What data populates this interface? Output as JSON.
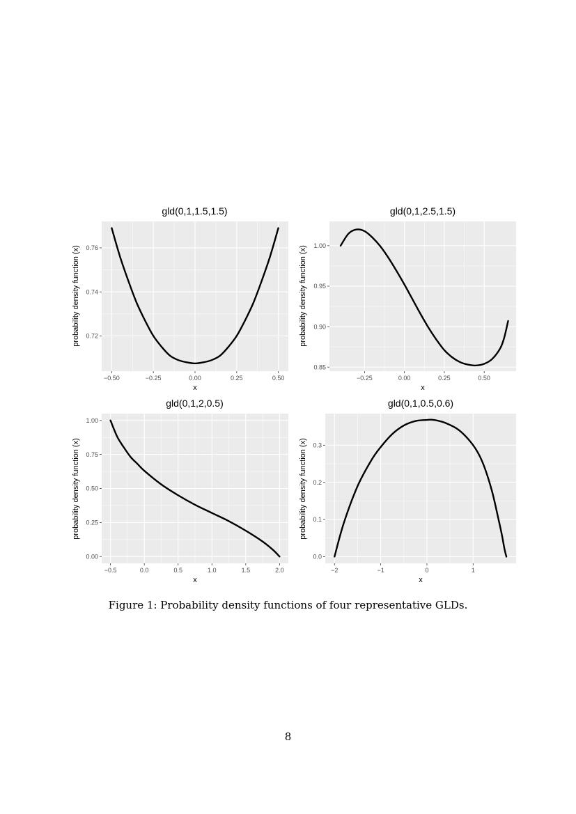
{
  "caption": "Figure 1: Probability density functions of four representative GLDs.",
  "page_number": "8",
  "style": {
    "panel_background": "#ebebeb",
    "grid_color": "#ffffff",
    "line_color": "#000000",
    "tick_label_color": "#4d4d4d"
  },
  "chart_data": [
    {
      "type": "line",
      "title": "gld(0,1,1.5,1.5)",
      "xlabel": "x",
      "ylabel": "probability density function (x)",
      "xlim": [
        -0.56,
        0.56
      ],
      "ylim": [
        0.704,
        0.772
      ],
      "xticks": [
        -0.5,
        -0.25,
        0.0,
        0.25,
        0.5
      ],
      "xtick_labels": [
        "−0.50",
        "−0.25",
        "0.00",
        "0.25",
        "0.50"
      ],
      "yticks": [
        0.72,
        0.74,
        0.76
      ],
      "ytick_labels": [
        "0.72",
        "0.74",
        "0.76"
      ],
      "grid": true,
      "series": [
        {
          "x": [
            -0.5,
            -0.45,
            -0.4,
            -0.35,
            -0.3,
            -0.25,
            -0.2,
            -0.15,
            -0.1,
            -0.05,
            0.0,
            0.05,
            0.1,
            0.15,
            0.2,
            0.25,
            0.3,
            0.35,
            0.4,
            0.45,
            0.5
          ],
          "y": [
            0.769,
            0.756,
            0.745,
            0.735,
            0.727,
            0.72,
            0.715,
            0.711,
            0.709,
            0.708,
            0.7075,
            0.708,
            0.709,
            0.711,
            0.715,
            0.72,
            0.727,
            0.735,
            0.745,
            0.756,
            0.769
          ]
        }
      ]
    },
    {
      "type": "line",
      "title": "gld(0,1,2.5,1.5)",
      "xlabel": "x",
      "ylabel": "probability density function (x)",
      "xlim": [
        -0.47,
        0.7
      ],
      "ylim": [
        0.845,
        1.03
      ],
      "xticks": [
        -0.25,
        0.0,
        0.25,
        0.5
      ],
      "xtick_labels": [
        "−0.25",
        "0.00",
        "0.25",
        "0.50"
      ],
      "yticks": [
        0.85,
        0.9,
        0.95,
        1.0
      ],
      "ytick_labels": [
        "0.85",
        "0.90",
        "0.95",
        "1.00"
      ],
      "grid": true,
      "series": [
        {
          "x": [
            -0.4,
            -0.35,
            -0.3,
            -0.25,
            -0.2,
            -0.15,
            -0.1,
            -0.05,
            0.0,
            0.05,
            0.1,
            0.15,
            0.2,
            0.25,
            0.3,
            0.35,
            0.4,
            0.45,
            0.5,
            0.55,
            0.6,
            0.625,
            0.65
          ],
          "y": [
            1.0,
            1.015,
            1.02,
            1.018,
            1.01,
            0.999,
            0.985,
            0.969,
            0.952,
            0.934,
            0.916,
            0.899,
            0.884,
            0.871,
            0.862,
            0.856,
            0.853,
            0.852,
            0.854,
            0.86,
            0.873,
            0.886,
            0.907
          ]
        }
      ]
    },
    {
      "type": "line",
      "title": "gld(0,1,2,0.5)",
      "xlabel": "x",
      "ylabel": "probability density function (x)",
      "xlim": [
        -0.63,
        2.13
      ],
      "ylim": [
        -0.05,
        1.05
      ],
      "xticks": [
        -0.5,
        0.0,
        0.5,
        1.0,
        1.5,
        2.0
      ],
      "xtick_labels": [
        "−0.5",
        "0.0",
        "0.5",
        "1.0",
        "1.5",
        "2.0"
      ],
      "yticks": [
        0.0,
        0.25,
        0.5,
        0.75,
        1.0
      ],
      "ytick_labels": [
        "0.00",
        "0.25",
        "0.50",
        "0.75",
        "1.00"
      ],
      "grid": true,
      "series": [
        {
          "x": [
            -0.5,
            -0.4,
            -0.3,
            -0.2,
            -0.1,
            0.0,
            0.25,
            0.5,
            0.75,
            1.0,
            1.25,
            1.5,
            1.75,
            1.9,
            2.0
          ],
          "y": [
            1.0,
            0.88,
            0.8,
            0.73,
            0.68,
            0.63,
            0.53,
            0.45,
            0.38,
            0.32,
            0.26,
            0.19,
            0.11,
            0.05,
            0.0
          ]
        }
      ]
    },
    {
      "type": "line",
      "title": "gld(0,1,0.5,0.6)",
      "xlabel": "x",
      "ylabel": "probability density function (x)",
      "xlim": [
        -2.2,
        1.93
      ],
      "ylim": [
        -0.018,
        0.385
      ],
      "xticks": [
        -2,
        -1,
        0,
        1
      ],
      "xtick_labels": [
        "−2",
        "−1",
        "0",
        "1"
      ],
      "yticks": [
        0.0,
        0.1,
        0.2,
        0.3
      ],
      "ytick_labels": [
        "0.0",
        "0.1",
        "0.2",
        "0.3"
      ],
      "grid": true,
      "series": [
        {
          "x": [
            -2.0,
            -1.8,
            -1.5,
            -1.2,
            -1.0,
            -0.75,
            -0.5,
            -0.25,
            0.0,
            0.15,
            0.4,
            0.7,
            1.0,
            1.2,
            1.4,
            1.55,
            1.62,
            1.68,
            1.72
          ],
          "y": [
            0.0,
            0.09,
            0.19,
            0.26,
            0.295,
            0.33,
            0.353,
            0.365,
            0.368,
            0.368,
            0.36,
            0.34,
            0.3,
            0.255,
            0.18,
            0.1,
            0.06,
            0.02,
            0.0
          ]
        }
      ]
    }
  ]
}
